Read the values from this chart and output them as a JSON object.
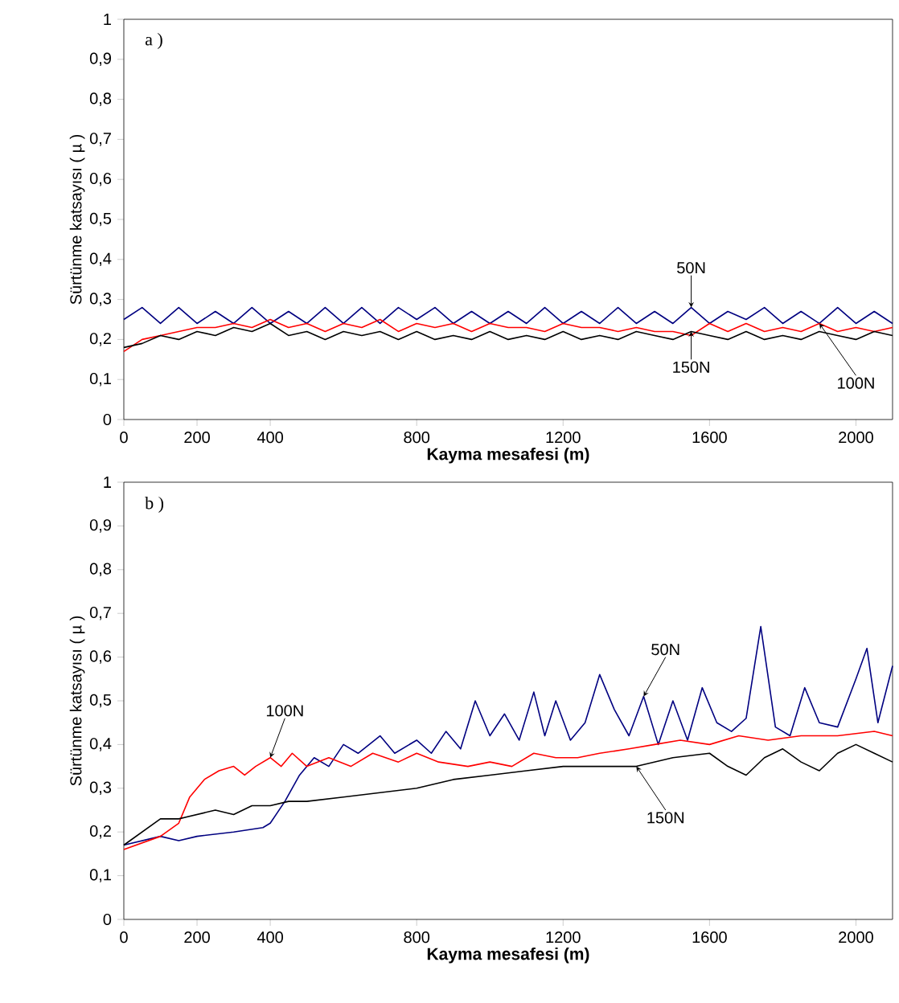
{
  "chart_data": [
    {
      "type": "line",
      "xlabel": "Kayma mesafesi (m)",
      "ylabel": "Sürtünme katsayısı ( µ )",
      "annotations": [
        "a )"
      ],
      "x": [
        0,
        50,
        100,
        150,
        200,
        250,
        300,
        350,
        400,
        450,
        500,
        550,
        600,
        650,
        700,
        750,
        800,
        850,
        900,
        950,
        1000,
        1050,
        1100,
        1150,
        1200,
        1250,
        1300,
        1350,
        1400,
        1450,
        1500,
        1550,
        1600,
        1650,
        1700,
        1750,
        1800,
        1850,
        1900,
        1950,
        2000,
        2050,
        2100
      ],
      "series": [
        {
          "name": "50N",
          "color": "#000080",
          "values": [
            0.25,
            0.28,
            0.24,
            0.28,
            0.24,
            0.27,
            0.24,
            0.28,
            0.24,
            0.27,
            0.24,
            0.28,
            0.24,
            0.28,
            0.24,
            0.28,
            0.25,
            0.28,
            0.24,
            0.27,
            0.24,
            0.27,
            0.24,
            0.28,
            0.24,
            0.27,
            0.24,
            0.28,
            0.24,
            0.27,
            0.24,
            0.28,
            0.24,
            0.27,
            0.25,
            0.28,
            0.24,
            0.27,
            0.24,
            0.28,
            0.24,
            0.27,
            0.24
          ]
        },
        {
          "name": "100N",
          "color": "#ff0000",
          "values": [
            0.17,
            0.2,
            0.21,
            0.22,
            0.23,
            0.23,
            0.24,
            0.23,
            0.25,
            0.23,
            0.24,
            0.22,
            0.24,
            0.23,
            0.25,
            0.22,
            0.24,
            0.23,
            0.24,
            0.22,
            0.24,
            0.23,
            0.23,
            0.22,
            0.24,
            0.23,
            0.23,
            0.22,
            0.23,
            0.22,
            0.22,
            0.21,
            0.24,
            0.22,
            0.24,
            0.22,
            0.23,
            0.22,
            0.24,
            0.22,
            0.23,
            0.22,
            0.23
          ]
        },
        {
          "name": "150N",
          "color": "#000000",
          "values": [
            0.18,
            0.19,
            0.21,
            0.2,
            0.22,
            0.21,
            0.23,
            0.22,
            0.24,
            0.21,
            0.22,
            0.2,
            0.22,
            0.21,
            0.22,
            0.2,
            0.22,
            0.2,
            0.21,
            0.2,
            0.22,
            0.2,
            0.21,
            0.2,
            0.22,
            0.2,
            0.21,
            0.2,
            0.22,
            0.21,
            0.2,
            0.22,
            0.21,
            0.2,
            0.22,
            0.2,
            0.21,
            0.2,
            0.22,
            0.21,
            0.2,
            0.22,
            0.21
          ]
        }
      ],
      "xlim": [
        0,
        2100
      ],
      "xticks": [
        0,
        200,
        400,
        800,
        1200,
        1600,
        2000
      ],
      "ylim": [
        0,
        1
      ],
      "yticks": [
        0,
        {
          "value": 0.1,
          "label": "0,1"
        },
        {
          "value": 0.2,
          "label": "0,2"
        },
        {
          "value": 0.3,
          "label": "0,3"
        },
        {
          "value": 0.4,
          "label": "0,4"
        },
        {
          "value": 0.5,
          "label": "0,5"
        },
        {
          "value": 0.6,
          "label": "0,6"
        },
        {
          "value": 0.7,
          "label": "0,7"
        },
        {
          "value": 0.8,
          "label": "0,8"
        },
        {
          "value": 0.9,
          "label": "0,9"
        },
        1
      ]
    },
    {
      "type": "line",
      "xlabel": "Kayma mesafesi (m)",
      "ylabel": "Sürtünme katsayısı ( µ )",
      "annotations": [
        "b )"
      ],
      "series": [
        {
          "name": "50N",
          "color": "#000080",
          "x": [
            0,
            100,
            150,
            200,
            300,
            380,
            400,
            440,
            480,
            520,
            560,
            600,
            640,
            700,
            740,
            800,
            840,
            880,
            920,
            960,
            1000,
            1040,
            1080,
            1120,
            1150,
            1180,
            1220,
            1260,
            1300,
            1340,
            1380,
            1420,
            1460,
            1500,
            1540,
            1580,
            1620,
            1660,
            1700,
            1740,
            1780,
            1820,
            1860,
            1900,
            1950,
            2000,
            2030,
            2060,
            2100
          ],
          "values": [
            0.17,
            0.19,
            0.18,
            0.19,
            0.2,
            0.21,
            0.22,
            0.27,
            0.33,
            0.37,
            0.35,
            0.4,
            0.38,
            0.42,
            0.38,
            0.41,
            0.38,
            0.43,
            0.39,
            0.5,
            0.42,
            0.47,
            0.41,
            0.52,
            0.42,
            0.5,
            0.41,
            0.45,
            0.56,
            0.48,
            0.42,
            0.51,
            0.4,
            0.5,
            0.41,
            0.53,
            0.45,
            0.43,
            0.46,
            0.67,
            0.44,
            0.42,
            0.53,
            0.45,
            0.44,
            0.55,
            0.62,
            0.45,
            0.58
          ]
        },
        {
          "name": "100N",
          "color": "#ff0000",
          "x": [
            0,
            100,
            150,
            180,
            220,
            260,
            300,
            330,
            360,
            400,
            430,
            460,
            500,
            560,
            620,
            680,
            750,
            800,
            860,
            940,
            1000,
            1060,
            1120,
            1180,
            1240,
            1300,
            1380,
            1450,
            1520,
            1600,
            1680,
            1760,
            1850,
            1950,
            2050,
            2100
          ],
          "values": [
            0.16,
            0.19,
            0.22,
            0.28,
            0.32,
            0.34,
            0.35,
            0.33,
            0.35,
            0.37,
            0.35,
            0.38,
            0.35,
            0.37,
            0.35,
            0.38,
            0.36,
            0.38,
            0.36,
            0.35,
            0.36,
            0.35,
            0.38,
            0.37,
            0.37,
            0.38,
            0.39,
            0.4,
            0.41,
            0.4,
            0.42,
            0.41,
            0.42,
            0.42,
            0.43,
            0.42
          ]
        },
        {
          "name": "150N",
          "color": "#000000",
          "x": [
            0,
            50,
            100,
            150,
            200,
            250,
            300,
            350,
            400,
            450,
            500,
            600,
            700,
            800,
            900,
            1000,
            1100,
            1200,
            1300,
            1400,
            1500,
            1600,
            1650,
            1700,
            1750,
            1800,
            1850,
            1900,
            1950,
            2000,
            2050,
            2100
          ],
          "values": [
            0.17,
            0.2,
            0.23,
            0.23,
            0.24,
            0.25,
            0.24,
            0.26,
            0.26,
            0.27,
            0.27,
            0.28,
            0.29,
            0.3,
            0.32,
            0.33,
            0.34,
            0.35,
            0.35,
            0.35,
            0.37,
            0.38,
            0.35,
            0.33,
            0.37,
            0.39,
            0.36,
            0.34,
            0.38,
            0.4,
            0.38,
            0.36
          ]
        }
      ],
      "xlim": [
        0,
        2100
      ],
      "xticks": [
        0,
        200,
        400,
        800,
        1200,
        1600,
        2000
      ],
      "ylim": [
        0,
        1
      ],
      "yticks": [
        0,
        {
          "value": 0.1,
          "label": "0,1"
        },
        {
          "value": 0.2,
          "label": "0,2"
        },
        {
          "value": 0.3,
          "label": "0,3"
        },
        {
          "value": 0.4,
          "label": "0,4"
        },
        {
          "value": 0.5,
          "label": "0,5"
        },
        {
          "value": 0.6,
          "label": "0,6"
        },
        {
          "value": 0.7,
          "label": "0,7"
        },
        {
          "value": 0.8,
          "label": "0,8"
        },
        {
          "value": 0.9,
          "label": "0,9"
        },
        1
      ]
    }
  ]
}
